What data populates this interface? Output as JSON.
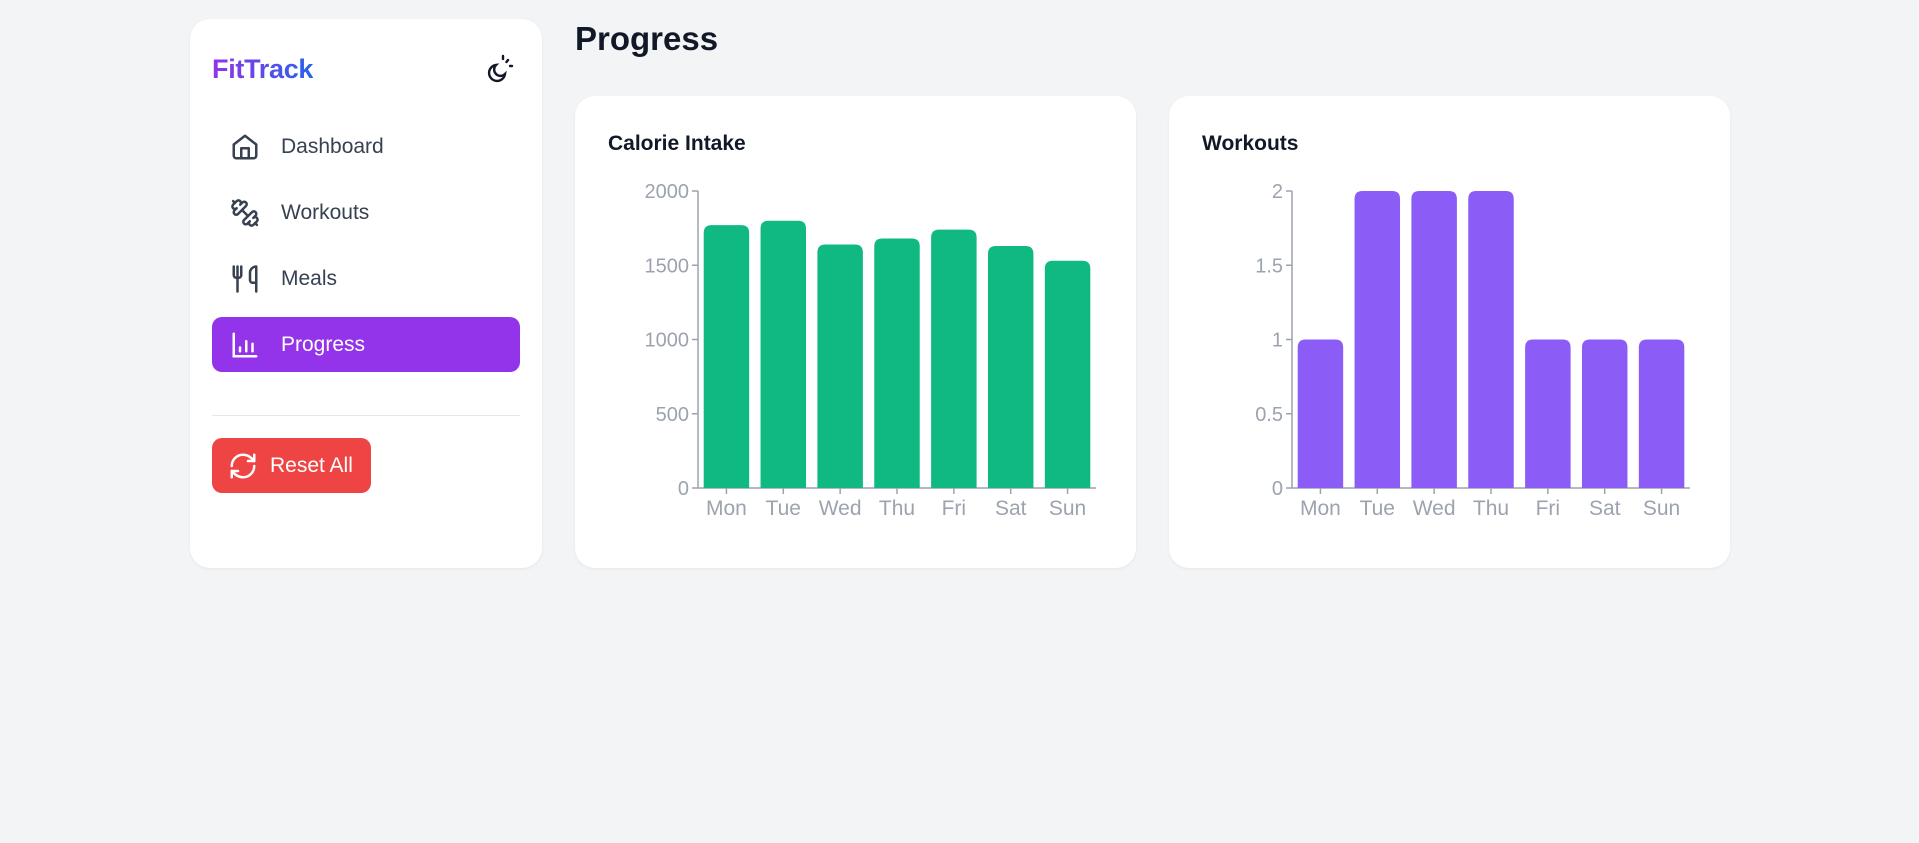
{
  "sidebar": {
    "brand": "FitTrack",
    "theme_toggle_icon": "theme-toggle-moon-sun-icon",
    "items": [
      {
        "label": "Dashboard",
        "icon": "home-icon",
        "active": false
      },
      {
        "label": "Workouts",
        "icon": "dumbbell-icon",
        "active": false
      },
      {
        "label": "Meals",
        "icon": "utensils-icon",
        "active": false
      },
      {
        "label": "Progress",
        "icon": "bar-chart-icon",
        "active": true
      }
    ],
    "reset": {
      "label": "Reset All",
      "icon": "refresh-icon"
    }
  },
  "header": {
    "title": "Progress"
  },
  "colors": {
    "accent": "#9333ea",
    "calorie_bar": "#10b981",
    "workout_bar": "#8b5cf6",
    "reset": "#ef4444",
    "axis": "#9ca3af"
  },
  "cards": [
    {
      "title": "Calorie Intake"
    },
    {
      "title": "Workouts"
    }
  ],
  "chart_data": [
    {
      "type": "bar",
      "title": "Calorie Intake",
      "categories": [
        "Mon",
        "Tue",
        "Wed",
        "Thu",
        "Fri",
        "Sat",
        "Sun"
      ],
      "values": [
        1770,
        1800,
        1640,
        1680,
        1740,
        1630,
        1530
      ],
      "yticks": [
        "0",
        "500",
        "1000",
        "1500",
        "2000"
      ],
      "ylim": [
        0,
        2000
      ],
      "xlabel": "",
      "ylabel": "",
      "grid": false,
      "color": "#10b981"
    },
    {
      "type": "bar",
      "title": "Workouts",
      "categories": [
        "Mon",
        "Tue",
        "Wed",
        "Thu",
        "Fri",
        "Sat",
        "Sun"
      ],
      "values": [
        1,
        2,
        2,
        2,
        1,
        1,
        1
      ],
      "yticks": [
        "0",
        "0.5",
        "1",
        "1.5",
        "2"
      ],
      "ylim": [
        0,
        2
      ],
      "xlabel": "",
      "ylabel": "",
      "grid": false,
      "color": "#8b5cf6"
    }
  ]
}
